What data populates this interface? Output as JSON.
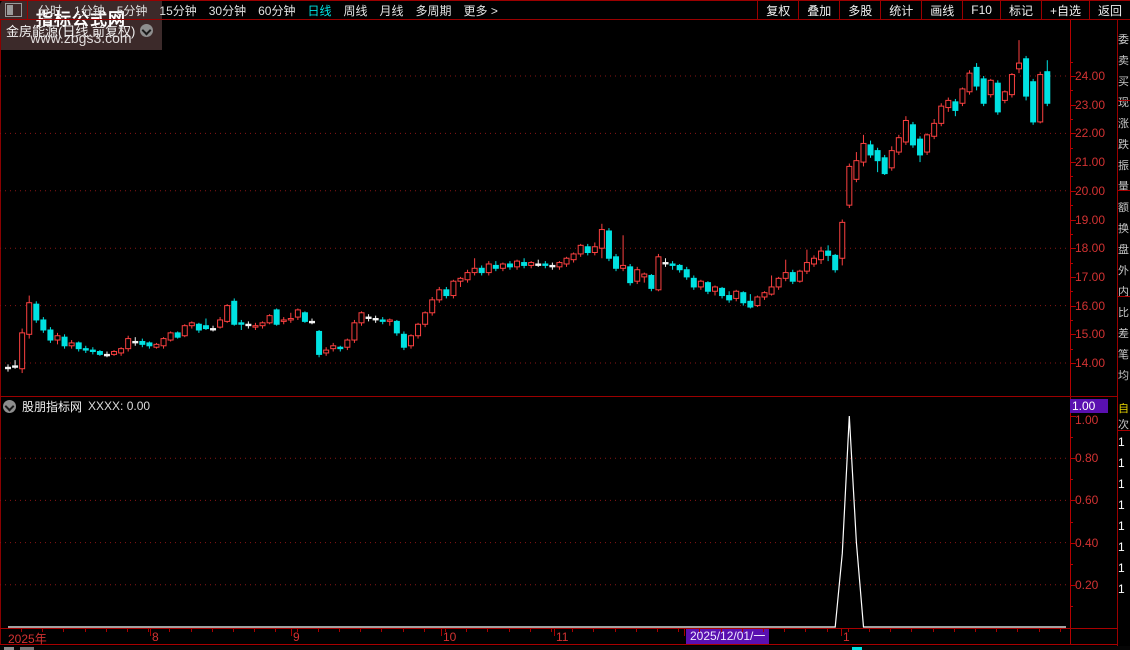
{
  "toolbar": {
    "left_items": [
      "分时",
      "1分钟",
      "5分钟",
      "15分钟",
      "30分钟",
      "60分钟",
      "日线",
      "周线",
      "月线",
      "多周期",
      "更多 >"
    ],
    "active_item": "日线",
    "right_items": [
      "复权",
      "叠加",
      "多股",
      "统计",
      "画线",
      "F10",
      "标记",
      "+自选",
      "返回"
    ]
  },
  "main_chart": {
    "title": "金房能源(日线.前复权)",
    "y_labels": [
      "24.00",
      "23.00",
      "22.00",
      "21.00",
      "20.00",
      "19.00",
      "18.00",
      "17.00",
      "16.00",
      "15.00",
      "14.00"
    ]
  },
  "sub_chart": {
    "title": "股朋指标网",
    "value_text": "XXXX: 0.00",
    "value_tag": "1.00",
    "y_labels": [
      "1.00",
      "0.80",
      "0.60",
      "0.40",
      "0.20"
    ]
  },
  "x_axis": {
    "labels": [
      {
        "text": "2025年",
        "x": 8,
        "tick": false,
        "highlight": false
      },
      {
        "text": "8",
        "x": 152,
        "tick": true,
        "highlight": false
      },
      {
        "text": "9",
        "x": 293,
        "tick": true,
        "highlight": false
      },
      {
        "text": "10",
        "x": 443,
        "tick": true,
        "highlight": false
      },
      {
        "text": "11",
        "x": 556,
        "tick": true,
        "highlight": false
      },
      {
        "text": "2025/12/01/一",
        "x": 686,
        "tick": true,
        "highlight": true
      },
      {
        "text": "1",
        "x": 843,
        "tick": true,
        "highlight": false
      }
    ]
  },
  "right_strip": {
    "fragments": [
      "委",
      "卖",
      "买",
      "现",
      "涨",
      "跌",
      "振",
      "量",
      "额",
      "换",
      "盘",
      "外",
      "内",
      "比",
      "差",
      "笔",
      "均"
    ],
    "accent_fragment": "自",
    "sub_fragment": "次",
    "digits": [
      "1",
      "1",
      "1",
      "1",
      "1",
      "1",
      "1",
      "1"
    ]
  },
  "watermark": {
    "line1": "指标公式网",
    "line2": "www.zbgs3.com"
  },
  "colors": {
    "up": "#fb4040",
    "down": "#00e2e2",
    "doji": "#f2f2f2",
    "grid": "#8a1616",
    "axis": "#b40000",
    "label": "#d23232",
    "accent_purple": "#5a10b0",
    "active_menu": "#00e2e2",
    "indicator_line": "#ffffff"
  },
  "chart_data": {
    "type": "candlestick",
    "title": "金房能源(日线.前复权)",
    "ylim": [
      13.5,
      25.3
    ],
    "y_ticks": [
      14,
      15,
      16,
      17,
      18,
      19,
      20,
      21,
      22,
      23,
      24
    ],
    "y_gridlines": [
      14,
      16,
      18,
      20,
      22,
      24
    ],
    "candles": [
      [
        13.85,
        13.95,
        13.7,
        13.85
      ],
      [
        13.9,
        14.1,
        13.8,
        13.9
      ],
      [
        13.8,
        15.2,
        13.65,
        15.05
      ],
      [
        15.0,
        16.35,
        14.85,
        16.1
      ],
      [
        16.05,
        16.15,
        15.4,
        15.5
      ],
      [
        15.5,
        15.6,
        15.05,
        15.15
      ],
      [
        15.15,
        15.25,
        14.7,
        14.8
      ],
      [
        14.8,
        15.05,
        14.65,
        14.95
      ],
      [
        14.9,
        15.0,
        14.5,
        14.6
      ],
      [
        14.6,
        14.8,
        14.5,
        14.7
      ],
      [
        14.7,
        14.75,
        14.4,
        14.5
      ],
      [
        14.5,
        14.6,
        14.35,
        14.45
      ],
      [
        14.45,
        14.55,
        14.3,
        14.4
      ],
      [
        14.4,
        14.45,
        14.25,
        14.3
      ],
      [
        14.3,
        14.4,
        14.2,
        14.3
      ],
      [
        14.3,
        14.45,
        14.25,
        14.4
      ],
      [
        14.35,
        14.55,
        14.25,
        14.5
      ],
      [
        14.5,
        14.95,
        14.4,
        14.85
      ],
      [
        14.75,
        14.9,
        14.6,
        14.75
      ],
      [
        14.75,
        14.85,
        14.55,
        14.65
      ],
      [
        14.7,
        14.75,
        14.5,
        14.6
      ],
      [
        14.55,
        14.7,
        14.5,
        14.65
      ],
      [
        14.6,
        14.9,
        14.5,
        14.85
      ],
      [
        14.8,
        15.1,
        14.75,
        15.05
      ],
      [
        15.05,
        15.1,
        14.85,
        14.9
      ],
      [
        14.95,
        15.35,
        14.9,
        15.3
      ],
      [
        15.3,
        15.45,
        15.2,
        15.4
      ],
      [
        15.35,
        15.4,
        15.05,
        15.15
      ],
      [
        15.3,
        15.55,
        15.15,
        15.2
      ],
      [
        15.2,
        15.3,
        15.1,
        15.2
      ],
      [
        15.25,
        15.6,
        15.2,
        15.5
      ],
      [
        15.45,
        16.05,
        15.4,
        16.0
      ],
      [
        16.15,
        16.25,
        15.3,
        15.35
      ],
      [
        15.4,
        15.5,
        15.15,
        15.35
      ],
      [
        15.35,
        15.45,
        15.2,
        15.35
      ],
      [
        15.25,
        15.4,
        15.15,
        15.3
      ],
      [
        15.3,
        15.45,
        15.2,
        15.4
      ],
      [
        15.4,
        15.7,
        15.35,
        15.65
      ],
      [
        15.85,
        15.9,
        15.3,
        15.35
      ],
      [
        15.45,
        15.6,
        15.35,
        15.5
      ],
      [
        15.5,
        15.75,
        15.4,
        15.55
      ],
      [
        15.6,
        15.9,
        15.5,
        15.85
      ],
      [
        15.75,
        15.8,
        15.4,
        15.45
      ],
      [
        15.45,
        15.55,
        15.35,
        15.45
      ],
      [
        15.1,
        15.15,
        14.2,
        14.3
      ],
      [
        14.35,
        14.55,
        14.25,
        14.45
      ],
      [
        14.5,
        14.7,
        14.4,
        14.6
      ],
      [
        14.55,
        14.6,
        14.4,
        14.5
      ],
      [
        14.55,
        14.85,
        14.45,
        14.8
      ],
      [
        14.8,
        15.5,
        14.7,
        15.4
      ],
      [
        15.4,
        15.8,
        15.3,
        15.75
      ],
      [
        15.6,
        15.7,
        15.45,
        15.6
      ],
      [
        15.55,
        15.65,
        15.4,
        15.55
      ],
      [
        15.5,
        15.6,
        15.35,
        15.45
      ],
      [
        15.45,
        15.55,
        15.3,
        15.5
      ],
      [
        15.45,
        15.5,
        14.95,
        15.05
      ],
      [
        15.0,
        15.1,
        14.45,
        14.55
      ],
      [
        14.6,
        15.0,
        14.5,
        14.95
      ],
      [
        14.95,
        15.4,
        14.85,
        15.35
      ],
      [
        15.35,
        15.8,
        15.25,
        15.75
      ],
      [
        15.75,
        16.3,
        15.65,
        16.2
      ],
      [
        16.2,
        16.65,
        16.1,
        16.55
      ],
      [
        16.55,
        16.65,
        16.25,
        16.35
      ],
      [
        16.35,
        16.9,
        16.25,
        16.85
      ],
      [
        16.85,
        17.0,
        16.65,
        16.95
      ],
      [
        16.9,
        17.25,
        16.8,
        17.15
      ],
      [
        17.15,
        17.65,
        17.05,
        17.3
      ],
      [
        17.3,
        17.4,
        17.05,
        17.15
      ],
      [
        17.15,
        17.55,
        17.05,
        17.45
      ],
      [
        17.4,
        17.55,
        17.2,
        17.3
      ],
      [
        17.3,
        17.5,
        17.2,
        17.45
      ],
      [
        17.45,
        17.55,
        17.25,
        17.35
      ],
      [
        17.35,
        17.6,
        17.25,
        17.55
      ],
      [
        17.5,
        17.65,
        17.3,
        17.4
      ],
      [
        17.4,
        17.55,
        17.3,
        17.5
      ],
      [
        17.45,
        17.6,
        17.35,
        17.45
      ],
      [
        17.45,
        17.55,
        17.3,
        17.4
      ],
      [
        17.4,
        17.5,
        17.25,
        17.4
      ],
      [
        17.35,
        17.55,
        17.25,
        17.5
      ],
      [
        17.45,
        17.7,
        17.35,
        17.65
      ],
      [
        17.6,
        17.85,
        17.5,
        17.8
      ],
      [
        17.8,
        18.15,
        17.7,
        18.1
      ],
      [
        18.05,
        18.15,
        17.75,
        17.85
      ],
      [
        17.85,
        18.2,
        17.75,
        18.05
      ],
      [
        18.0,
        18.85,
        17.65,
        18.65
      ],
      [
        18.6,
        18.7,
        17.55,
        17.65
      ],
      [
        17.7,
        17.8,
        17.2,
        17.3
      ],
      [
        17.3,
        18.45,
        17.2,
        17.4
      ],
      [
        17.35,
        17.45,
        16.7,
        16.8
      ],
      [
        16.85,
        17.35,
        16.75,
        17.25
      ],
      [
        17.0,
        17.15,
        16.8,
        17.1
      ],
      [
        17.05,
        17.1,
        16.5,
        16.6
      ],
      [
        16.55,
        17.8,
        16.5,
        17.7
      ],
      [
        17.5,
        17.65,
        17.35,
        17.5
      ],
      [
        17.45,
        17.55,
        17.25,
        17.4
      ],
      [
        17.4,
        17.45,
        17.15,
        17.25
      ],
      [
        17.25,
        17.35,
        16.9,
        17.0
      ],
      [
        16.95,
        17.05,
        16.55,
        16.65
      ],
      [
        16.65,
        16.9,
        16.55,
        16.85
      ],
      [
        16.8,
        16.85,
        16.4,
        16.5
      ],
      [
        16.5,
        16.7,
        16.35,
        16.65
      ],
      [
        16.6,
        16.65,
        16.25,
        16.35
      ],
      [
        16.35,
        16.5,
        16.1,
        16.2
      ],
      [
        16.25,
        16.55,
        16.15,
        16.5
      ],
      [
        16.45,
        16.5,
        16.0,
        16.1
      ],
      [
        16.15,
        16.4,
        15.9,
        15.95
      ],
      [
        16.0,
        16.35,
        15.95,
        16.3
      ],
      [
        16.3,
        16.5,
        16.2,
        16.45
      ],
      [
        16.4,
        17.05,
        16.35,
        16.65
      ],
      [
        16.65,
        17.0,
        16.55,
        16.95
      ],
      [
        16.95,
        17.6,
        16.85,
        17.15
      ],
      [
        17.15,
        17.25,
        16.75,
        16.85
      ],
      [
        16.85,
        17.25,
        16.8,
        17.2
      ],
      [
        17.2,
        17.95,
        17.1,
        17.5
      ],
      [
        17.45,
        17.75,
        17.35,
        17.65
      ],
      [
        17.6,
        18.05,
        17.45,
        17.9
      ],
      [
        17.9,
        18.1,
        17.55,
        17.75
      ],
      [
        17.75,
        17.8,
        17.15,
        17.25
      ],
      [
        17.65,
        19.0,
        17.4,
        18.9
      ],
      [
        19.5,
        20.95,
        19.4,
        20.85
      ],
      [
        20.4,
        21.35,
        20.3,
        21.05
      ],
      [
        21.0,
        21.95,
        20.85,
        21.65
      ],
      [
        21.6,
        21.75,
        21.15,
        21.25
      ],
      [
        21.4,
        21.5,
        20.65,
        21.05
      ],
      [
        21.15,
        21.25,
        20.55,
        20.6
      ],
      [
        20.8,
        21.55,
        20.7,
        21.4
      ],
      [
        21.35,
        21.95,
        21.25,
        21.85
      ],
      [
        21.7,
        22.6,
        21.6,
        22.45
      ],
      [
        22.3,
        22.4,
        21.5,
        21.6
      ],
      [
        21.8,
        21.9,
        21.0,
        21.25
      ],
      [
        21.35,
        22.0,
        21.25,
        21.95
      ],
      [
        21.9,
        22.5,
        21.8,
        22.35
      ],
      [
        22.35,
        23.05,
        22.25,
        22.95
      ],
      [
        22.9,
        23.25,
        22.75,
        23.15
      ],
      [
        23.1,
        23.2,
        22.6,
        22.8
      ],
      [
        23.05,
        23.6,
        22.95,
        23.55
      ],
      [
        23.45,
        24.2,
        23.35,
        24.1
      ],
      [
        24.3,
        24.45,
        23.5,
        23.65
      ],
      [
        23.9,
        24.0,
        22.95,
        23.05
      ],
      [
        23.35,
        23.9,
        23.25,
        23.85
      ],
      [
        23.75,
        23.85,
        22.65,
        22.75
      ],
      [
        23.15,
        23.5,
        23.05,
        23.45
      ],
      [
        23.35,
        24.1,
        23.25,
        24.05
      ],
      [
        24.25,
        25.25,
        24.1,
        24.45
      ],
      [
        24.6,
        24.7,
        23.15,
        23.3
      ],
      [
        23.8,
        23.9,
        22.3,
        22.4
      ],
      [
        22.4,
        24.15,
        22.35,
        24.05
      ],
      [
        24.15,
        24.55,
        22.95,
        23.05
      ]
    ],
    "indicator": {
      "name": "股朋指标网",
      "value_label": "XXXX: 0.00",
      "ylim": [
        0,
        1.05
      ],
      "y_ticks": [
        0.2,
        0.4,
        0.6,
        0.8,
        1.0
      ],
      "baseline_value": 0,
      "spike_points": {
        "118": 0.35,
        "119": 1.0,
        "120": 0.4
      }
    }
  }
}
